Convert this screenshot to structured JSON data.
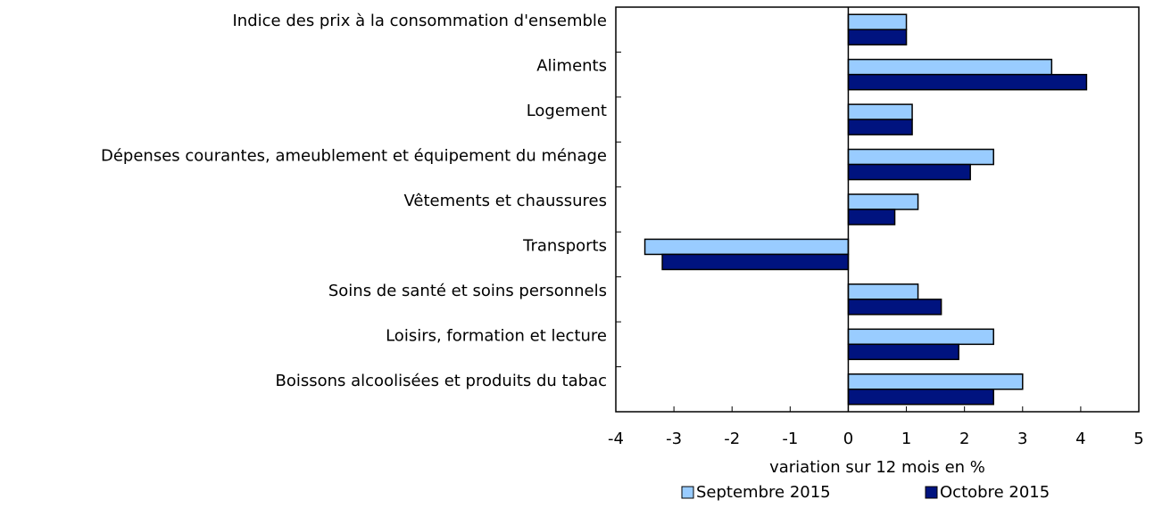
{
  "chart_data": {
    "type": "hbar",
    "categories": [
      "Indice des prix à la consommation d'ensemble",
      "Aliments",
      "Logement",
      "Dépenses courantes, ameublement et équipement du ménage",
      "Vêtements et chaussures",
      "Transports",
      "Soins de santé et soins personnels",
      "Loisirs, formation et lecture",
      "Boissons alcoolisées et produits du tabac"
    ],
    "series": [
      {
        "name": "Septembre 2015",
        "color": "#99ccff",
        "values": [
          1.0,
          3.5,
          1.1,
          2.5,
          1.2,
          -3.5,
          1.2,
          2.5,
          3.0
        ]
      },
      {
        "name": "Octobre 2015",
        "color": "#00137f",
        "values": [
          1.0,
          4.1,
          1.1,
          2.1,
          0.8,
          -3.2,
          1.6,
          1.9,
          2.5
        ]
      }
    ],
    "x_label": "variation sur 12 mois en %",
    "xlim": [
      -4,
      5
    ],
    "xticks": [
      -4,
      -3,
      -2,
      -1,
      0,
      1,
      2,
      3,
      4,
      5
    ],
    "legend": "bottom"
  }
}
